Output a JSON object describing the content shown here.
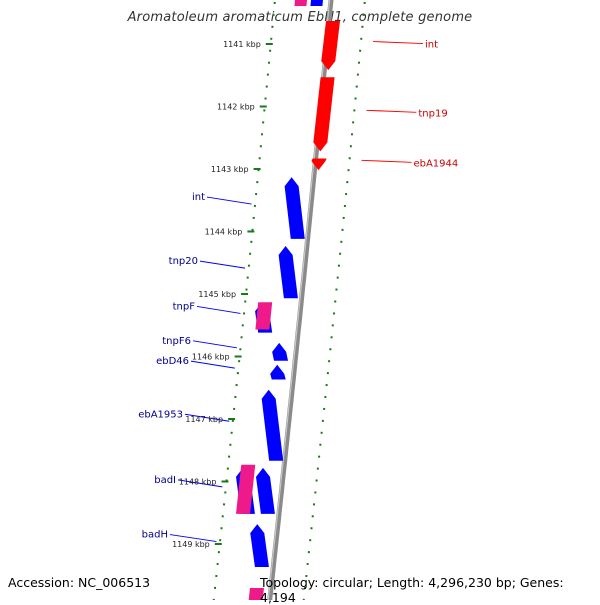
{
  "title": "Aromatoleum aromaticum EbN1, complete genome",
  "footer": {
    "accession": "Accession: NC_006513",
    "topology": "Topology: circular; Length: 4,296,230 bp; Genes: 4,194"
  },
  "colors": {
    "forward_gene": "#0000ff",
    "reverse_gene": "#ff0000",
    "other_feature": "#ee1a8a",
    "tick_green": "#1a7a1a",
    "backbone": "#8a8a8a"
  },
  "ticks": [
    {
      "kbp": 1141,
      "label": "1141 kbp"
    },
    {
      "kbp": 1142,
      "label": "1142 kbp"
    },
    {
      "kbp": 1143,
      "label": "1143 kbp"
    },
    {
      "kbp": 1144,
      "label": "1144 kbp"
    },
    {
      "kbp": 1145,
      "label": "1145 kbp"
    },
    {
      "kbp": 1146,
      "label": "1146 kbp"
    },
    {
      "kbp": 1147,
      "label": "1147 kbp"
    },
    {
      "kbp": 1148,
      "label": "1148 kbp"
    },
    {
      "kbp": 1149,
      "label": "1149 kbp"
    }
  ],
  "reverse_genes": [
    {
      "name": "int",
      "start_kbp": 1140.6,
      "end_kbp": 1141.45
    },
    {
      "name": "tnp19",
      "start_kbp": 1141.5,
      "end_kbp": 1142.75
    },
    {
      "name": "ebA1944",
      "start_kbp": 1142.8,
      "end_kbp": 1143.05
    }
  ],
  "forward_genes": [
    {
      "name": "int",
      "start_kbp": 1143.1,
      "end_kbp": 1144.15
    },
    {
      "name": "tnp20",
      "start_kbp": 1144.2,
      "end_kbp": 1145.1
    },
    {
      "name": "tnpF",
      "start_kbp": 1145.1,
      "end_kbp": 1145.65
    },
    {
      "name": "tnpF6",
      "start_kbp": 1145.75,
      "end_kbp": 1146.1
    },
    {
      "name": "ebD46",
      "start_kbp": 1146.1,
      "end_kbp": 1146.4
    },
    {
      "name": "ebA1953",
      "start_kbp": 1146.5,
      "end_kbp": 1147.7
    },
    {
      "name": "badI",
      "start_kbp": 1147.75,
      "end_kbp": 1148.55
    },
    {
      "name": "badH",
      "start_kbp": 1148.65,
      "end_kbp": 1149.4
    }
  ],
  "other_features": [
    {
      "start_kbp": 1145.1,
      "end_kbp": 1145.6
    },
    {
      "start_kbp": 1147.7,
      "end_kbp": 1148.55
    }
  ]
}
